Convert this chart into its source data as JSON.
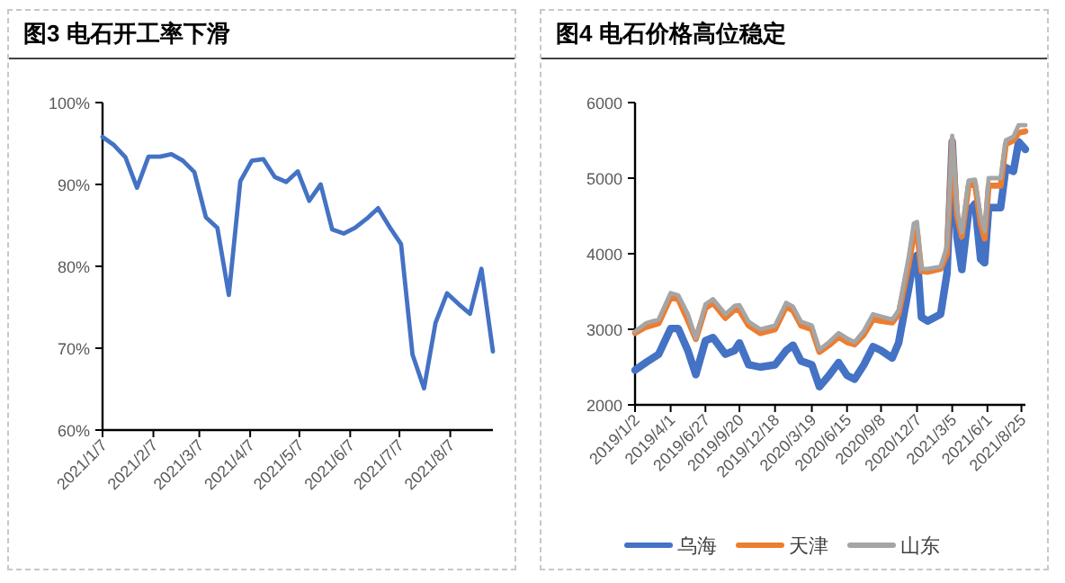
{
  "chart_data": [
    {
      "type": "line",
      "title": "图3 电石开工率下滑",
      "x": [
        "2021-01-07",
        "2021-01-14",
        "2021-01-21",
        "2021-01-28",
        "2021-02-04",
        "2021-02-11",
        "2021-02-18",
        "2021-02-25",
        "2021-03-04",
        "2021-03-11",
        "2021-03-18",
        "2021-03-25",
        "2021-04-01",
        "2021-04-08",
        "2021-04-15",
        "2021-04-22",
        "2021-04-29",
        "2021-05-06",
        "2021-05-13",
        "2021-05-20",
        "2021-05-27",
        "2021-06-03",
        "2021-06-10",
        "2021-06-17",
        "2021-06-24",
        "2021-07-01",
        "2021-07-08",
        "2021-07-15",
        "2021-07-22",
        "2021-07-29",
        "2021-08-05",
        "2021-08-12",
        "2021-08-19",
        "2021-08-26",
        "2021-09-02"
      ],
      "series": [
        {
          "color": "#4472c4",
          "values": [
            95.8,
            94.8,
            93.3,
            89.6,
            93.4,
            93.4,
            93.7,
            92.9,
            91.5,
            86.0,
            84.7,
            76.5,
            90.4,
            92.9,
            93.1,
            90.9,
            90.3,
            91.6,
            88.0,
            90.0,
            84.5,
            84.0,
            84.7,
            85.8,
            87.1,
            84.8,
            82.7,
            69.2,
            65.1,
            73.1,
            76.7,
            75.4,
            74.2,
            79.7,
            69.6
          ]
        }
      ],
      "xlim": [
        "2021-01-07",
        "2021-09-02"
      ],
      "xticks": [
        {
          "value": "2021-01-07",
          "label": "2021/1/7"
        },
        {
          "value": "2021-02-07",
          "label": "2021/2/7"
        },
        {
          "value": "2021-03-07",
          "label": "2021/3/7"
        },
        {
          "value": "2021-04-07",
          "label": "2021/4/7"
        },
        {
          "value": "2021-05-07",
          "label": "2021/5/7"
        },
        {
          "value": "2021-06-07",
          "label": "2021/6/7"
        },
        {
          "value": "2021-07-07",
          "label": "2021/7/7"
        },
        {
          "value": "2021-08-07",
          "label": "2021/8/7"
        }
      ],
      "ylim": [
        60,
        100
      ],
      "yticks": [
        {
          "value": 60,
          "label": "60%"
        },
        {
          "value": 70,
          "label": "70%"
        },
        {
          "value": 80,
          "label": "80%"
        },
        {
          "value": 90,
          "label": "90%"
        },
        {
          "value": 100,
          "label": "100%"
        }
      ],
      "line_style": "solid"
    },
    {
      "type": "line",
      "title": "图4  电石价格高位稳定",
      "x": [
        "2019-01-02",
        "2019-01-29",
        "2019-03-02",
        "2019-04-01",
        "2019-04-20",
        "2019-05-14",
        "2019-06-03",
        "2019-06-27",
        "2019-07-16",
        "2019-08-16",
        "2019-09-08",
        "2019-09-20",
        "2019-10-13",
        "2019-11-11",
        "2019-12-18",
        "2020-01-15",
        "2020-02-01",
        "2020-02-21",
        "2020-03-19",
        "2020-04-07",
        "2020-05-01",
        "2020-05-25",
        "2020-06-15",
        "2020-07-04",
        "2020-07-27",
        "2020-08-19",
        "2020-09-08",
        "2020-10-06",
        "2020-10-22",
        "2020-11-16",
        "2020-11-29",
        "2020-12-07",
        "2020-12-18",
        "2021-01-03",
        "2021-02-04",
        "2021-02-20",
        "2021-03-05",
        "2021-03-17",
        "2021-03-29",
        "2021-04-15",
        "2021-05-01",
        "2021-05-15",
        "2021-05-25",
        "2021-06-04",
        "2021-07-04",
        "2021-07-17",
        "2021-08-05",
        "2021-08-18",
        "2021-09-04"
      ],
      "series": [
        {
          "name": "乌海",
          "color": "#4472c4",
          "values": [
            2460,
            2560,
            2670,
            3010,
            3010,
            2720,
            2400,
            2850,
            2890,
            2670,
            2720,
            2820,
            2530,
            2500,
            2530,
            2720,
            2790,
            2580,
            2530,
            2240,
            2390,
            2560,
            2390,
            2340,
            2530,
            2770,
            2720,
            2620,
            2820,
            3540,
            3930,
            3980,
            3160,
            3110,
            3200,
            3740,
            5480,
            4220,
            3790,
            4560,
            4660,
            3930,
            3880,
            4610,
            4610,
            5140,
            5090,
            5480,
            5380
          ]
        },
        {
          "name": "天津",
          "color": "#ed7d31",
          "values": [
            2950,
            3030,
            3080,
            3420,
            3400,
            3120,
            2870,
            3280,
            3350,
            3150,
            3260,
            3250,
            3050,
            2950,
            3000,
            3300,
            3250,
            3050,
            3000,
            2700,
            2790,
            2900,
            2830,
            2800,
            2930,
            3130,
            3110,
            3090,
            3200,
            3850,
            4250,
            4300,
            3770,
            3760,
            3800,
            4000,
            5500,
            4500,
            4230,
            4900,
            4920,
            4400,
            4200,
            4900,
            4900,
            5450,
            5500,
            5600,
            5620
          ]
        },
        {
          "name": "山东",
          "color": "#a5a5a5",
          "values": [
            2970,
            3080,
            3130,
            3480,
            3450,
            3200,
            2880,
            3330,
            3400,
            3200,
            3310,
            3320,
            3100,
            3000,
            3050,
            3350,
            3300,
            3100,
            3050,
            2730,
            2830,
            2950,
            2880,
            2830,
            2980,
            3200,
            3170,
            3130,
            3250,
            3950,
            4400,
            4420,
            3800,
            3800,
            3830,
            4100,
            5560,
            4600,
            4280,
            4970,
            4980,
            4500,
            4300,
            5000,
            5000,
            5500,
            5550,
            5700,
            5700
          ]
        }
      ],
      "xlim": [
        "2019-01-02",
        "2021-09-04"
      ],
      "xticks": [
        {
          "value": "2019-01-02",
          "label": "2019/1/2"
        },
        {
          "value": "2019-04-01",
          "label": "2019/4/1"
        },
        {
          "value": "2019-06-27",
          "label": "2019/6/27"
        },
        {
          "value": "2019-09-20",
          "label": "2019/9/20"
        },
        {
          "value": "2019-12-18",
          "label": "2019/12/18"
        },
        {
          "value": "2020-03-19",
          "label": "2020/3/19"
        },
        {
          "value": "2020-06-15",
          "label": "2020/6/15"
        },
        {
          "value": "2020-09-08",
          "label": "2020/9/8"
        },
        {
          "value": "2020-12-07",
          "label": "2020/12/7"
        },
        {
          "value": "2021-03-05",
          "label": "2021/3/5"
        },
        {
          "value": "2021-06-01",
          "label": "2021/6/1"
        },
        {
          "value": "2021-08-25",
          "label": "2021/8/25"
        }
      ],
      "ylim": [
        2000,
        6000
      ],
      "yticks": [
        2000,
        3000,
        4000,
        5000,
        6000
      ],
      "legend": "bottom",
      "line_style": "solid"
    }
  ]
}
